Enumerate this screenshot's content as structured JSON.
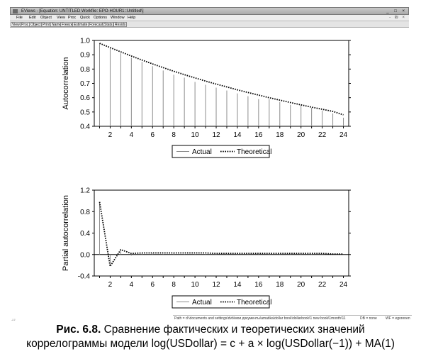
{
  "window": {
    "title": "EViews - [Equation: UNTITLED   Workfile: EPO-HOUR1::Untitled\\]",
    "controls": "_ □ ×"
  },
  "menu": {
    "items": [
      "File",
      "Edit",
      "Object",
      "View",
      "Proc",
      "Quick",
      "Options",
      "Window",
      "Help"
    ],
    "window_controls": "- ₪ ×"
  },
  "toolbar": {
    "buttons": [
      "View",
      "Proc",
      "Object",
      "Print",
      "Name",
      "Freeze",
      "Estimate",
      "Forecast",
      "Stats",
      "Resids"
    ]
  },
  "chart_data": [
    {
      "type": "line",
      "ylabel": "Autocorrelation",
      "xlabel": "",
      "ylim": [
        0.4,
        1.0
      ],
      "xlim": [
        0.5,
        24.5
      ],
      "yticks": [
        0.4,
        0.5,
        0.6,
        0.7,
        0.8,
        0.9,
        1.0
      ],
      "ytick_labels": [
        "0.4",
        "0.5",
        "0.6",
        "0.7",
        "0.8",
        "0.9",
        "1.0"
      ],
      "xticks": [
        2,
        4,
        6,
        8,
        10,
        12,
        14,
        16,
        18,
        20,
        22,
        24
      ],
      "x": [
        1,
        2,
        3,
        4,
        5,
        6,
        7,
        8,
        9,
        10,
        11,
        12,
        13,
        14,
        15,
        16,
        17,
        18,
        19,
        20,
        21,
        22,
        23,
        24
      ],
      "grid": false,
      "legend": "bottom-center",
      "series": [
        {
          "name": "Actual",
          "style": "spikes",
          "color": "#8c8c8c",
          "values": [
            0.98,
            0.95,
            0.91,
            0.88,
            0.85,
            0.82,
            0.79,
            0.76,
            0.74,
            0.71,
            0.69,
            0.67,
            0.65,
            0.63,
            0.61,
            0.59,
            0.59,
            0.57,
            0.55,
            0.55,
            0.53,
            0.51,
            0.49,
            0.46
          ]
        },
        {
          "name": "Theoretical",
          "style": "dotted",
          "color": "#000000",
          "values": [
            0.98,
            0.95,
            0.92,
            0.891,
            0.863,
            0.836,
            0.81,
            0.785,
            0.761,
            0.738,
            0.716,
            0.695,
            0.675,
            0.655,
            0.636,
            0.618,
            0.6,
            0.583,
            0.566,
            0.55,
            0.534,
            0.519,
            0.504,
            0.48
          ]
        }
      ]
    },
    {
      "type": "line",
      "ylabel": "Partial autocorrelation",
      "xlabel": "",
      "ylim": [
        -0.4,
        1.2
      ],
      "xlim": [
        0.5,
        24.5
      ],
      "yticks": [
        -0.4,
        0.0,
        0.4,
        0.8,
        1.2
      ],
      "ytick_labels": [
        "-0.4",
        "0.0",
        "0.4",
        "0.8",
        "1.2"
      ],
      "xticks": [
        2,
        4,
        6,
        8,
        10,
        12,
        14,
        16,
        18,
        20,
        22,
        24
      ],
      "x": [
        1,
        2,
        3,
        4,
        5,
        6,
        7,
        8,
        9,
        10,
        11,
        12,
        13,
        14,
        15,
        16,
        17,
        18,
        19,
        20,
        21,
        22,
        23,
        24
      ],
      "grid": false,
      "zero_line": true,
      "legend": "bottom-center",
      "series": [
        {
          "name": "Actual",
          "style": "spikes",
          "color": "#8c8c8c",
          "values": [
            0.98,
            -0.19,
            0.06,
            -0.02,
            0.02,
            0.02,
            0.01,
            0.03,
            0.01,
            0.01,
            0.01,
            0.01,
            0.01,
            0.01,
            0.01,
            0.01,
            0.01,
            0.01,
            0.01,
            0.01,
            0.01,
            0.01,
            0.0,
            0.0
          ]
        },
        {
          "name": "Theoretical",
          "style": "dotted",
          "color": "#000000",
          "values": [
            0.98,
            -0.22,
            0.09,
            0.02,
            0.03,
            0.03,
            0.03,
            0.03,
            0.03,
            0.03,
            0.03,
            0.02,
            0.02,
            0.02,
            0.02,
            0.02,
            0.02,
            0.02,
            0.02,
            0.02,
            0.02,
            0.02,
            0.01,
            0.01
          ]
        }
      ]
    }
  ],
  "statusbar": {
    "path": "Path = d:\\documents and settings\\dvb\\мои документы\\amatika\\dollar book\\dollarbook\\1 new book\\1month\\11",
    "db": "DB = none",
    "wf": "WF = egorenen"
  },
  "caption": {
    "figure_label": "Рис. 6.8.",
    "line1": "Сравнение фактических и теоретических значений",
    "line2": "коррелограммы модели log(USDollar) = c + a × log(USDollar(−1)) + MA(1)"
  }
}
